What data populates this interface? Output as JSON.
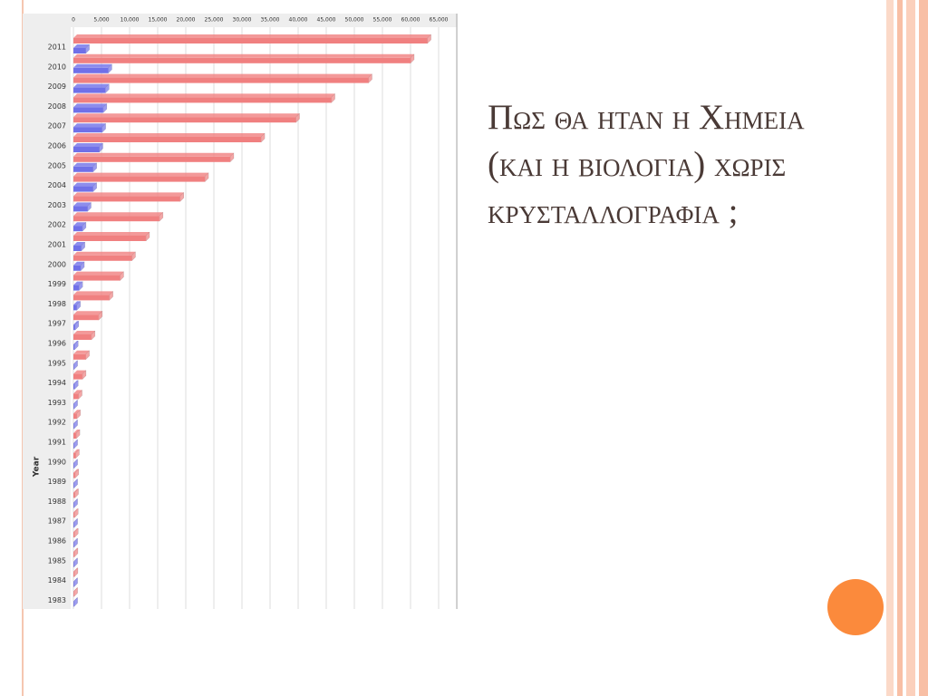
{
  "title": "Πως θα ηταν η Χημεια (και η βιολογια) χωρις κρυσταλλογραφια ;",
  "chart_data": {
    "type": "bar",
    "orientation": "horizontal",
    "y_label": "Year",
    "categories": [
      "2011",
      "2010",
      "2009",
      "2008",
      "2007",
      "2006",
      "2005",
      "2004",
      "2003",
      "2002",
      "2001",
      "2000",
      "1999",
      "1998",
      "1997",
      "1996",
      "1995",
      "1994",
      "1993",
      "1992",
      "1991",
      "1990",
      "1989",
      "1988",
      "1987",
      "1986",
      "1985",
      "1984",
      "1983"
    ],
    "series": [
      {
        "color": "#f08080",
        "values": [
          63000,
          60000,
          52500,
          45900,
          39600,
          33400,
          27900,
          23400,
          19000,
          15300,
          12900,
          10400,
          8300,
          6400,
          4500,
          3200,
          2200,
          1600,
          900,
          600,
          500,
          400,
          300,
          250,
          200,
          200,
          150,
          150,
          100
        ]
      },
      {
        "color": "#7070e8",
        "values": [
          2200,
          6200,
          5700,
          5300,
          5100,
          4600,
          3500,
          3500,
          2500,
          1600,
          1400,
          1300,
          1000,
          600,
          300,
          200,
          100,
          200,
          100,
          100,
          100,
          100,
          100,
          100,
          100,
          100,
          100,
          100,
          100
        ]
      }
    ],
    "xlim": [
      0,
      65000
    ],
    "xticks": [
      0,
      {
        "value": 5000,
        "label": "5,000"
      },
      {
        "value": 10000,
        "label": "10,000"
      },
      {
        "value": 15000,
        "label": "15,000"
      },
      {
        "value": 20000,
        "label": "20,000"
      },
      {
        "value": 25000,
        "label": "25,000"
      },
      {
        "value": 30000,
        "label": "30,000"
      },
      {
        "value": 35000,
        "label": "35,000"
      },
      {
        "value": 40000,
        "label": "40,000"
      },
      {
        "value": 45000,
        "label": "45,000"
      },
      {
        "value": 50000,
        "label": "50,000"
      },
      {
        "value": 55000,
        "label": "55,000"
      },
      {
        "value": 60000,
        "label": "60,000"
      },
      {
        "value": 65000,
        "label": "65,000"
      }
    ],
    "grid": true
  }
}
